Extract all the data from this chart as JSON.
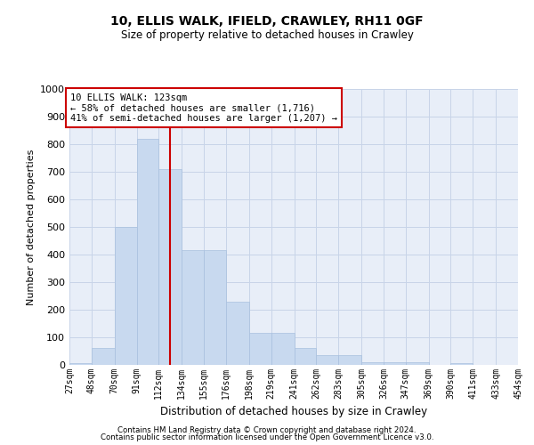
{
  "title_line1": "10, ELLIS WALK, IFIELD, CRAWLEY, RH11 0GF",
  "title_line2": "Size of property relative to detached houses in Crawley",
  "xlabel": "Distribution of detached houses by size in Crawley",
  "ylabel": "Number of detached properties",
  "bar_values": [
    5,
    60,
    500,
    820,
    710,
    415,
    415,
    230,
    115,
    115,
    60,
    35,
    35,
    10,
    10,
    10,
    0,
    5,
    0,
    0
  ],
  "bin_edges": [
    27,
    48,
    70,
    91,
    112,
    134,
    155,
    176,
    198,
    219,
    241,
    262,
    283,
    305,
    326,
    347,
    369,
    390,
    411,
    433,
    454
  ],
  "tick_labels": [
    "27sqm",
    "48sqm",
    "70sqm",
    "91sqm",
    "112sqm",
    "134sqm",
    "155sqm",
    "176sqm",
    "198sqm",
    "219sqm",
    "241sqm",
    "262sqm",
    "283sqm",
    "305sqm",
    "326sqm",
    "347sqm",
    "369sqm",
    "390sqm",
    "411sqm",
    "433sqm",
    "454sqm"
  ],
  "bar_color": "#c8d9ef",
  "bar_edge_color": "#a8c0de",
  "grid_color": "#c8d4e8",
  "bg_color": "#e8eef8",
  "annotation_text1": "10 ELLIS WALK: 123sqm",
  "annotation_text2": "← 58% of detached houses are smaller (1,716)",
  "annotation_text3": "41% of semi-detached houses are larger (1,207) →",
  "annotation_box_color": "#ffffff",
  "annotation_border_color": "#cc0000",
  "vline_color": "#cc0000",
  "vline_x": 123,
  "ylim": [
    0,
    1000
  ],
  "yticks": [
    0,
    100,
    200,
    300,
    400,
    500,
    600,
    700,
    800,
    900,
    1000
  ],
  "footer1": "Contains HM Land Registry data © Crown copyright and database right 2024.",
  "footer2": "Contains public sector information licensed under the Open Government Licence v3.0."
}
